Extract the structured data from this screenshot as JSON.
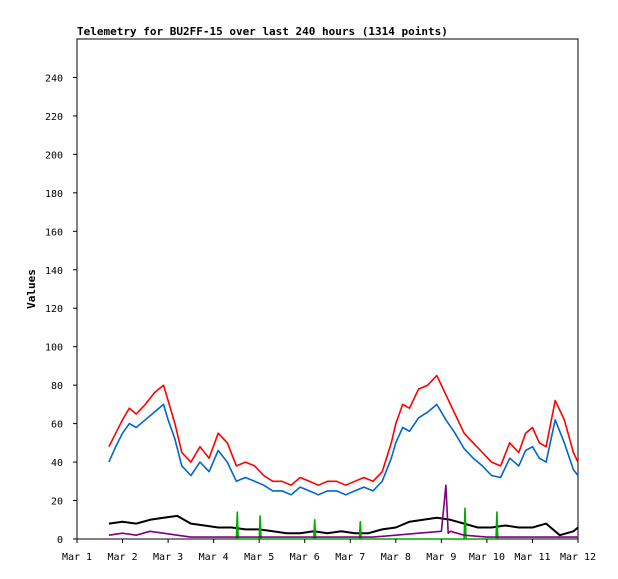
{
  "chart_data": {
    "type": "line",
    "title": "Telemetry for BU2FF-15 over last 240 hours (1314 points)",
    "xlabel": "",
    "ylabel": "Values",
    "xlim": [
      "Mar 1",
      "Mar 12"
    ],
    "ylim": [
      0,
      260
    ],
    "x_ticks": [
      "Mar 1",
      "Mar 2",
      "Mar 3",
      "Mar 4",
      "Mar 5",
      "Mar 6",
      "Mar 7",
      "Mar 8",
      "Mar 9",
      "Mar 10",
      "Mar 11",
      "Mar 12"
    ],
    "y_ticks": [
      0,
      20,
      40,
      60,
      80,
      100,
      120,
      140,
      160,
      180,
      200,
      220,
      240
    ],
    "grid": false,
    "legend": "none",
    "x_units": "days since Mar 1",
    "series": [
      {
        "color": "#ff0000",
        "x": [
          0.7,
          0.85,
          1.0,
          1.15,
          1.3,
          1.5,
          1.7,
          1.9,
          2.0,
          2.15,
          2.3,
          2.5,
          2.7,
          2.9,
          3.1,
          3.3,
          3.5,
          3.7,
          3.9,
          4.1,
          4.3,
          4.5,
          4.7,
          4.9,
          5.1,
          5.3,
          5.5,
          5.7,
          5.9,
          6.1,
          6.3,
          6.5,
          6.7,
          6.9,
          7.0,
          7.15,
          7.3,
          7.5,
          7.7,
          7.9,
          8.1,
          8.3,
          8.5,
          8.7,
          8.9,
          9.1,
          9.3,
          9.5,
          9.7,
          9.85,
          10.0,
          10.15,
          10.3,
          10.5,
          10.7,
          10.9,
          11.0
        ],
        "y": [
          48,
          55,
          62,
          68,
          65,
          70,
          76,
          80,
          72,
          60,
          45,
          40,
          48,
          42,
          55,
          50,
          38,
          40,
          38,
          33,
          30,
          30,
          28,
          32,
          30,
          28,
          30,
          30,
          28,
          30,
          32,
          30,
          35,
          50,
          60,
          70,
          68,
          78,
          80,
          85,
          75,
          65,
          55,
          50,
          45,
          40,
          38,
          50,
          45,
          55,
          58,
          50,
          48,
          72,
          62,
          45,
          40
        ]
      },
      {
        "color": "#0066cc",
        "x": [
          0.7,
          0.85,
          1.0,
          1.15,
          1.3,
          1.5,
          1.7,
          1.9,
          2.0,
          2.15,
          2.3,
          2.5,
          2.7,
          2.9,
          3.1,
          3.3,
          3.5,
          3.7,
          3.9,
          4.1,
          4.3,
          4.5,
          4.7,
          4.9,
          5.1,
          5.3,
          5.5,
          5.7,
          5.9,
          6.1,
          6.3,
          6.5,
          6.7,
          6.9,
          7.0,
          7.15,
          7.3,
          7.5,
          7.7,
          7.9,
          8.1,
          8.3,
          8.5,
          8.7,
          8.9,
          9.1,
          9.3,
          9.5,
          9.7,
          9.85,
          10.0,
          10.15,
          10.3,
          10.5,
          10.7,
          10.9,
          11.0
        ],
        "y": [
          40,
          48,
          55,
          60,
          58,
          62,
          66,
          70,
          62,
          52,
          38,
          33,
          40,
          35,
          46,
          40,
          30,
          32,
          30,
          28,
          25,
          25,
          23,
          27,
          25,
          23,
          25,
          25,
          23,
          25,
          27,
          25,
          30,
          42,
          50,
          58,
          56,
          63,
          66,
          70,
          62,
          55,
          47,
          42,
          38,
          33,
          32,
          42,
          38,
          46,
          48,
          42,
          40,
          62,
          50,
          36,
          33
        ]
      },
      {
        "color": "#000000",
        "x": [
          0.7,
          1.0,
          1.3,
          1.6,
          1.9,
          2.2,
          2.5,
          2.8,
          3.1,
          3.4,
          3.7,
          4.0,
          4.3,
          4.6,
          4.9,
          5.2,
          5.5,
          5.8,
          6.1,
          6.4,
          6.7,
          7.0,
          7.3,
          7.6,
          7.9,
          8.2,
          8.5,
          8.8,
          9.1,
          9.4,
          9.7,
          10.0,
          10.3,
          10.6,
          10.9,
          11.0
        ],
        "y": [
          8,
          9,
          8,
          10,
          11,
          12,
          8,
          7,
          6,
          6,
          5,
          5,
          4,
          3,
          3,
          4,
          3,
          4,
          3,
          3,
          5,
          6,
          9,
          10,
          11,
          10,
          8,
          6,
          6,
          7,
          6,
          6,
          8,
          2,
          4,
          6
        ]
      },
      {
        "color": "#00aa00",
        "x": [
          3.5,
          3.52,
          3.54,
          4.0,
          4.02,
          4.04,
          5.2,
          5.22,
          5.24,
          6.2,
          6.22,
          6.24,
          8.5,
          8.52,
          8.54,
          9.2,
          9.22,
          9.24
        ],
        "y": [
          0,
          14,
          0,
          0,
          12,
          0,
          0,
          10,
          0,
          0,
          9,
          0,
          0,
          16,
          0,
          0,
          14,
          0
        ]
      },
      {
        "color": "#800080",
        "x": [
          0.7,
          1.0,
          1.3,
          1.6,
          1.9,
          2.2,
          2.5,
          3.0,
          3.5,
          4.0,
          4.5,
          5.0,
          5.5,
          6.0,
          6.5,
          7.0,
          7.5,
          8.0,
          8.1,
          8.15,
          8.2,
          8.5,
          9.0,
          9.5,
          10.0,
          10.5,
          11.0
        ],
        "y": [
          2,
          3,
          2,
          4,
          3,
          2,
          1,
          1,
          1,
          1,
          1,
          1,
          1,
          1,
          1,
          2,
          3,
          4,
          28,
          3,
          4,
          2,
          1,
          1,
          1,
          1,
          1
        ]
      }
    ]
  }
}
